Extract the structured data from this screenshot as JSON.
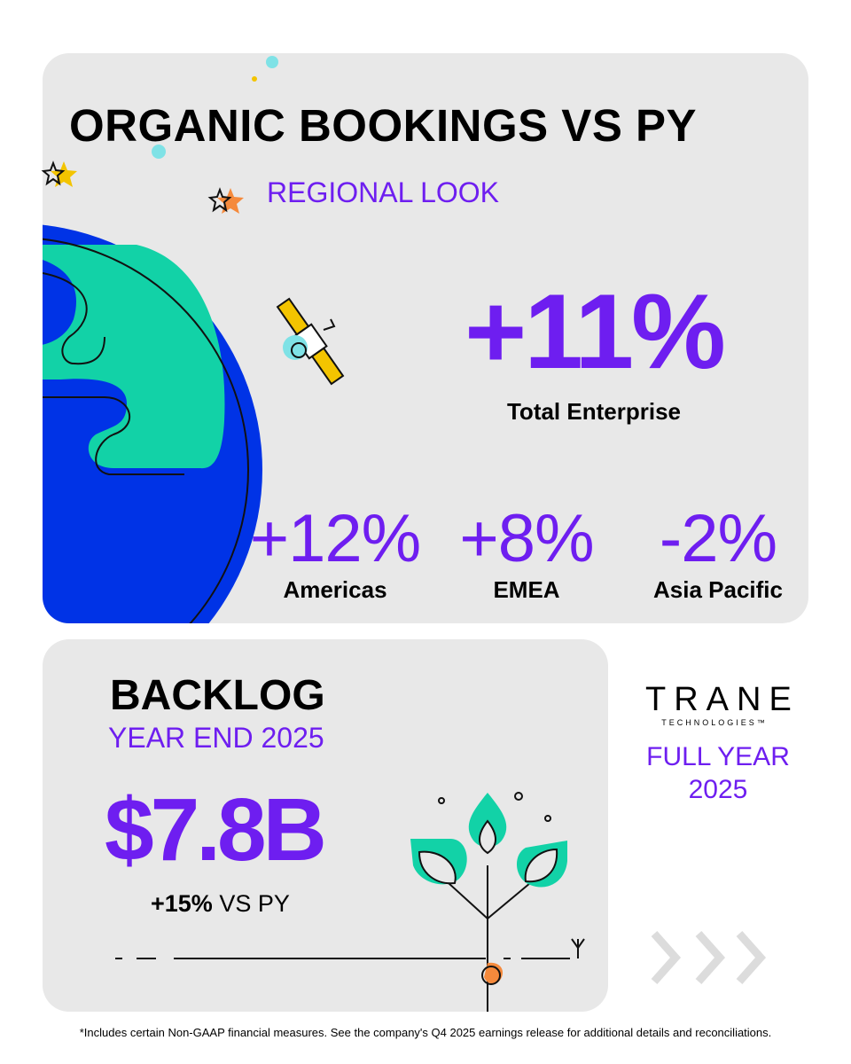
{
  "organic": {
    "title": "ORGANIC BOOKINGS VS PY",
    "subtitle": "REGIONAL LOOK",
    "total_value": "+11%",
    "total_label": "Total Enterprise",
    "regions": [
      {
        "value": "+12%",
        "label": "Americas"
      },
      {
        "value": "+8%",
        "label": "EMEA"
      },
      {
        "value": "-2%",
        "label": "Asia Pacific"
      }
    ]
  },
  "backlog": {
    "title": "BACKLOG",
    "subtitle": "YEAR END 2025",
    "value": "$7.8B",
    "change_bold": "+15%",
    "change_text": " VS PY"
  },
  "brand": {
    "logo_text": "TRANE",
    "logo_sub": "TECHNOLOGIES™",
    "period_line1": "FULL YEAR",
    "period_line2": "2025"
  },
  "footnote": "*Includes certain Non-GAAP financial measures. See the company's Q4 2025 earnings release for additional details and reconciliations.",
  "colors": {
    "accent_purple": "#6e1ef0",
    "globe_blue": "#0033e6",
    "globe_green": "#12d2a7",
    "card_bg": "#e8e8e8"
  },
  "icons": [
    "star-icon",
    "satellite-icon",
    "globe-illustration",
    "plant-icon",
    "chevron-right-icon"
  ]
}
